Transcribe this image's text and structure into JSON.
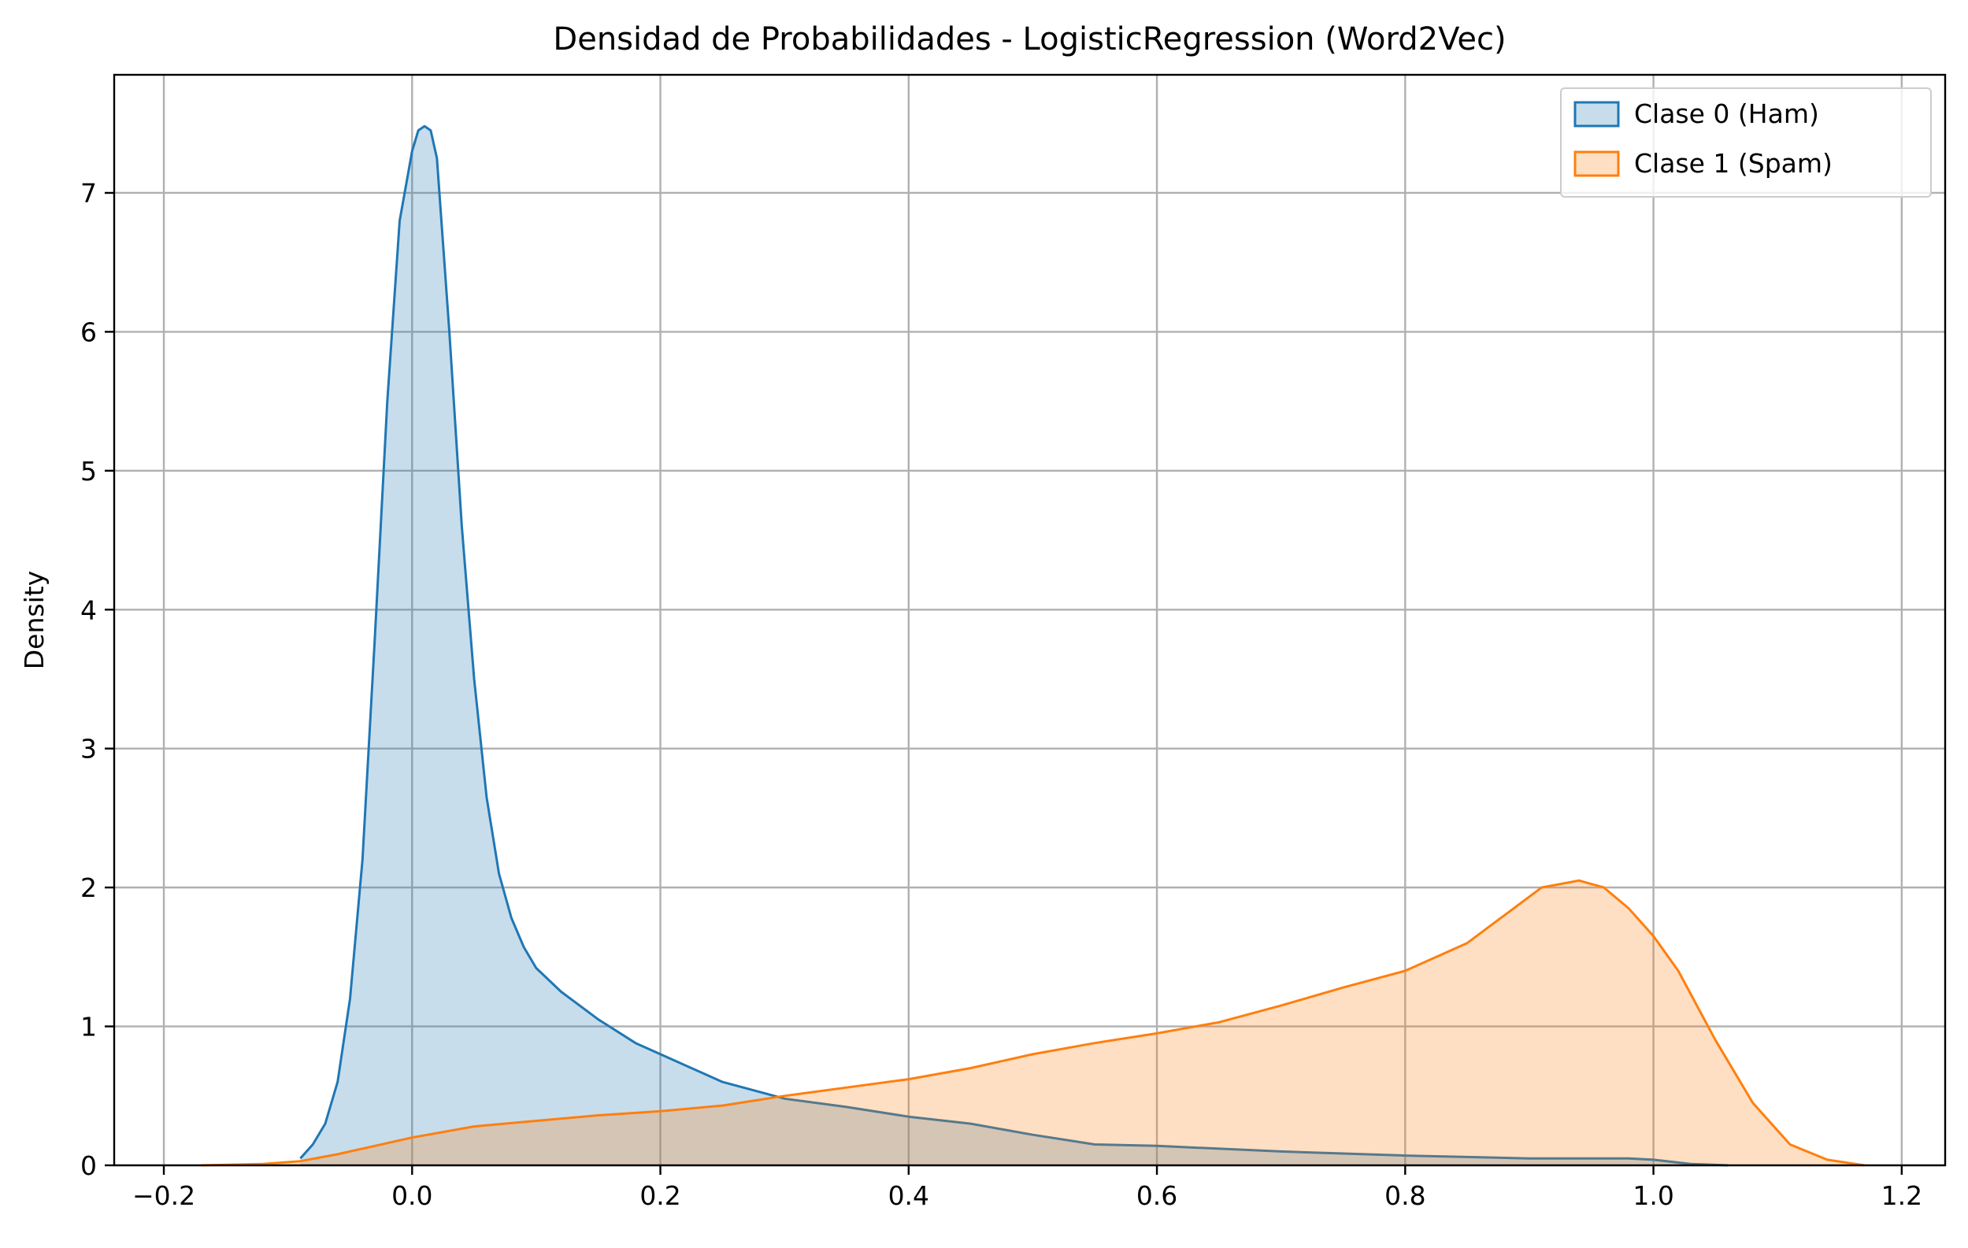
{
  "chart_data": {
    "type": "area",
    "title": "Densidad de Probabilidades - LogisticRegression (Word2Vec)",
    "xlabel": "",
    "ylabel": "Density",
    "xlim": [
      -0.24,
      1.235
    ],
    "ylim": [
      0,
      7.85
    ],
    "xticks": [
      -0.2,
      0.0,
      0.2,
      0.4,
      0.6,
      0.8,
      1.0,
      1.2
    ],
    "xtick_labels": [
      "−0.2",
      "0.0",
      "0.2",
      "0.4",
      "0.6",
      "0.8",
      "1.0",
      "1.2"
    ],
    "yticks": [
      0,
      1,
      2,
      3,
      4,
      5,
      6,
      7
    ],
    "ytick_labels": [
      "0",
      "1",
      "2",
      "3",
      "4",
      "5",
      "6",
      "7"
    ],
    "grid": true,
    "legend_position": "top-right",
    "series": [
      {
        "name": "Clase 0 (Ham)",
        "color": "#1f77b4",
        "fill_opacity": 0.25,
        "x": [
          -0.09,
          -0.08,
          -0.07,
          -0.06,
          -0.05,
          -0.04,
          -0.03,
          -0.02,
          -0.01,
          0.0,
          0.005,
          0.01,
          0.015,
          0.02,
          0.03,
          0.04,
          0.05,
          0.06,
          0.07,
          0.08,
          0.09,
          0.1,
          0.12,
          0.15,
          0.18,
          0.2,
          0.25,
          0.3,
          0.35,
          0.4,
          0.45,
          0.5,
          0.55,
          0.6,
          0.7,
          0.8,
          0.9,
          0.95,
          0.98,
          1.0,
          1.03,
          1.06
        ],
        "y": [
          0.05,
          0.15,
          0.3,
          0.6,
          1.2,
          2.2,
          3.8,
          5.5,
          6.8,
          7.3,
          7.45,
          7.48,
          7.45,
          7.25,
          6.0,
          4.6,
          3.5,
          2.65,
          2.1,
          1.78,
          1.57,
          1.42,
          1.25,
          1.05,
          0.88,
          0.8,
          0.6,
          0.48,
          0.42,
          0.35,
          0.3,
          0.22,
          0.15,
          0.14,
          0.1,
          0.07,
          0.05,
          0.05,
          0.05,
          0.04,
          0.01,
          0.0
        ]
      },
      {
        "name": "Clase 1 (Spam)",
        "color": "#ff7f0e",
        "fill_opacity": 0.25,
        "x": [
          -0.17,
          -0.12,
          -0.09,
          -0.06,
          -0.03,
          0.0,
          0.05,
          0.1,
          0.15,
          0.2,
          0.25,
          0.3,
          0.35,
          0.4,
          0.45,
          0.5,
          0.55,
          0.6,
          0.65,
          0.7,
          0.75,
          0.8,
          0.85,
          0.88,
          0.91,
          0.94,
          0.96,
          0.98,
          1.0,
          1.02,
          1.05,
          1.08,
          1.11,
          1.14,
          1.17
        ],
        "y": [
          0.0,
          0.01,
          0.03,
          0.08,
          0.14,
          0.2,
          0.28,
          0.32,
          0.36,
          0.39,
          0.43,
          0.5,
          0.56,
          0.62,
          0.7,
          0.8,
          0.88,
          0.95,
          1.03,
          1.15,
          1.28,
          1.4,
          1.6,
          1.8,
          2.0,
          2.05,
          2.0,
          1.85,
          1.65,
          1.4,
          0.9,
          0.45,
          0.15,
          0.04,
          0.0
        ]
      }
    ]
  }
}
